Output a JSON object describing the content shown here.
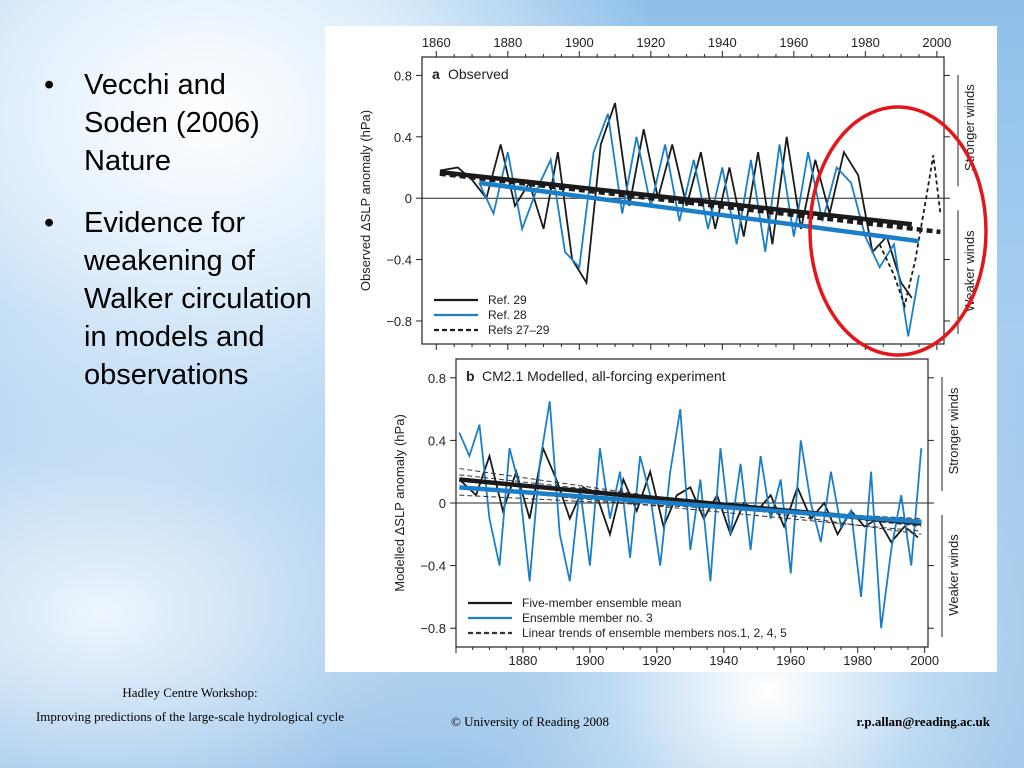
{
  "slide": {
    "bullets": [
      "Vecchi and Soden (2006) Nature",
      "Evidence for weakening of Walker circulation in models and observations"
    ],
    "footer": {
      "workshop_line1": "Hadley Centre Workshop:",
      "workshop_line2": "Improving predictions of the large-scale hydrological cycle",
      "copyright": "© University of Reading 2008",
      "email": "r.p.allan@reading.ac.uk"
    },
    "highlight_color": "#e2161b"
  },
  "chart_data": [
    {
      "type": "line",
      "panel_label": "a",
      "title": "Observed",
      "ylabel": "Observed ΔSLP anomaly (hPa)",
      "right_labels": [
        "Stronger winds",
        "Weaker winds"
      ],
      "xticks": [
        "1860",
        "1880",
        "1900",
        "1920",
        "1940",
        "1960",
        "1980",
        "2000"
      ],
      "yticks": [
        "0.8",
        "0.4",
        "0",
        "−0.4",
        "−0.8"
      ],
      "xlim": [
        1856,
        2002
      ],
      "ylim": [
        -0.95,
        0.92
      ],
      "series": [
        {
          "name": "Ref. 29",
          "color": "#1a1a1a",
          "style": "solid",
          "x": [
            1861,
            1866,
            1870,
            1874,
            1878,
            1882,
            1886,
            1890,
            1894,
            1898,
            1902,
            1906,
            1910,
            1914,
            1918,
            1922,
            1926,
            1930,
            1934,
            1938,
            1942,
            1946,
            1950,
            1954,
            1958,
            1962,
            1966,
            1970,
            1974,
            1978,
            1982,
            1986,
            1990,
            1993
          ],
          "values": [
            0.18,
            0.2,
            0.12,
            0.0,
            0.35,
            -0.05,
            0.1,
            -0.2,
            0.3,
            -0.4,
            -0.55,
            0.35,
            0.62,
            -0.05,
            0.45,
            0.0,
            0.35,
            -0.05,
            0.3,
            -0.2,
            0.2,
            -0.25,
            0.3,
            -0.3,
            0.4,
            -0.2,
            0.25,
            -0.1,
            0.3,
            0.15,
            -0.35,
            -0.25,
            -0.55,
            -0.65
          ]
        },
        {
          "name": "Ref. 28",
          "color": "#1a7fc8",
          "style": "solid",
          "x": [
            1872,
            1876,
            1880,
            1884,
            1888,
            1892,
            1896,
            1900,
            1904,
            1908,
            1912,
            1916,
            1920,
            1924,
            1928,
            1932,
            1936,
            1940,
            1944,
            1948,
            1952,
            1956,
            1960,
            1964,
            1968,
            1972,
            1976,
            1980,
            1984,
            1988,
            1992,
            1995
          ],
          "values": [
            0.1,
            -0.1,
            0.3,
            -0.2,
            0.05,
            0.25,
            -0.35,
            -0.45,
            0.3,
            0.55,
            -0.1,
            0.4,
            -0.05,
            0.35,
            -0.15,
            0.25,
            -0.2,
            0.2,
            -0.3,
            0.25,
            -0.35,
            0.35,
            -0.25,
            0.3,
            -0.15,
            0.2,
            0.1,
            -0.25,
            -0.45,
            -0.3,
            -0.9,
            -0.5
          ]
        },
        {
          "name": "Refs 27–29",
          "color": "#1a1a1a",
          "style": "dashed",
          "x": [
            1984,
            1988,
            1991,
            1994,
            1997,
            1999,
            2001
          ],
          "values": [
            -0.3,
            -0.5,
            -0.7,
            -0.4,
            0.0,
            0.28,
            -0.1
          ]
        }
      ],
      "trends": [
        {
          "of": "Ref. 29",
          "x": [
            1861,
            1993
          ],
          "values": [
            0.17,
            -0.17
          ]
        },
        {
          "of": "Ref. 28",
          "x": [
            1872,
            1995
          ],
          "values": [
            0.1,
            -0.28
          ]
        },
        {
          "of": "Refs 27–29",
          "x": [
            1861,
            2001
          ],
          "values": [
            0.16,
            -0.22
          ]
        }
      ]
    },
    {
      "type": "line",
      "panel_label": "b",
      "title": "CM2.1 Modelled, all-forcing experiment",
      "ylabel": "Modelled ΔSLP anomaly (hPa)",
      "right_labels": [
        "Stronger winds",
        "Weaker winds"
      ],
      "xticks": [
        "1880",
        "1900",
        "1920",
        "1940",
        "1960",
        "1980",
        "2000"
      ],
      "yticks": [
        "0.8",
        "0.4",
        "0",
        "−0.4",
        "−0.8"
      ],
      "xlim": [
        1860,
        2001
      ],
      "ylim": [
        -0.92,
        0.92
      ],
      "series": [
        {
          "name": "Five-member ensemble mean",
          "color": "#1a1a1a",
          "style": "solid",
          "x": [
            1861,
            1866,
            1870,
            1874,
            1878,
            1882,
            1886,
            1890,
            1894,
            1898,
            1902,
            1906,
            1910,
            1914,
            1918,
            1922,
            1926,
            1930,
            1934,
            1938,
            1942,
            1946,
            1950,
            1954,
            1958,
            1962,
            1966,
            1970,
            1974,
            1978,
            1982,
            1986,
            1990,
            1994,
            1998
          ],
          "values": [
            0.15,
            0.05,
            0.3,
            -0.05,
            0.2,
            -0.1,
            0.35,
            0.15,
            -0.1,
            0.1,
            0.05,
            -0.2,
            0.15,
            -0.05,
            0.2,
            -0.15,
            0.05,
            0.1,
            -0.1,
            0.05,
            -0.2,
            0.0,
            -0.05,
            0.05,
            -0.15,
            0.1,
            -0.1,
            0.0,
            -0.2,
            -0.05,
            -0.15,
            -0.1,
            -0.25,
            -0.15,
            -0.22
          ]
        },
        {
          "name": "Ensemble member no. 3",
          "color": "#1a7fc8",
          "style": "solid",
          "x": [
            1861,
            1864,
            1867,
            1870,
            1873,
            1876,
            1879,
            1882,
            1885,
            1888,
            1891,
            1894,
            1897,
            1900,
            1903,
            1906,
            1909,
            1912,
            1915,
            1918,
            1921,
            1924,
            1927,
            1930,
            1933,
            1936,
            1939,
            1942,
            1945,
            1948,
            1951,
            1954,
            1957,
            1960,
            1963,
            1966,
            1969,
            1972,
            1975,
            1978,
            1981,
            1984,
            1987,
            1990,
            1993,
            1996,
            1999
          ],
          "values": [
            0.45,
            0.3,
            0.5,
            -0.1,
            -0.4,
            0.35,
            0.1,
            -0.5,
            0.25,
            0.65,
            -0.2,
            -0.5,
            0.1,
            -0.4,
            0.35,
            -0.1,
            0.2,
            -0.35,
            0.3,
            0.05,
            -0.4,
            0.2,
            0.6,
            -0.3,
            0.15,
            -0.5,
            0.35,
            -0.2,
            0.25,
            -0.3,
            0.3,
            -0.1,
            0.15,
            -0.45,
            0.4,
            0.0,
            -0.25,
            0.2,
            -0.15,
            -0.05,
            -0.6,
            0.2,
            -0.8,
            -0.3,
            0.05,
            -0.4,
            0.35
          ]
        }
      ],
      "trends": [
        {
          "of": "Five-member ensemble mean",
          "x": [
            1861,
            1999
          ],
          "values": [
            0.15,
            -0.13
          ]
        },
        {
          "of": "Ensemble member no. 3",
          "x": [
            1861,
            1999
          ],
          "values": [
            0.1,
            -0.12
          ]
        }
      ],
      "dashed_trends_label": "Linear trends of ensemble members nos.1, 2, 4, 5",
      "dashed_trends": [
        {
          "x": [
            1861,
            1999
          ],
          "values": [
            0.22,
            -0.2
          ]
        },
        {
          "x": [
            1861,
            1999
          ],
          "values": [
            0.18,
            -0.15
          ]
        },
        {
          "x": [
            1861,
            1999
          ],
          "values": [
            0.05,
            -0.1
          ]
        },
        {
          "x": [
            1861,
            1999
          ],
          "values": [
            0.1,
            -0.18
          ]
        }
      ]
    }
  ]
}
